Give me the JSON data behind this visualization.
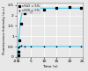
{
  "title": "",
  "xlabel": "Time (s)",
  "ylabel": "Fluorescence Intensity (a.u.)",
  "xlim": [
    -0.5,
    25
  ],
  "ylim": [
    0,
    2.6
  ],
  "xticks": [
    -0.5,
    0,
    5,
    10,
    15,
    20,
    25
  ],
  "xtick_labels": [
    "-0.5",
    "0",
    "5",
    "10",
    "15",
    "20",
    "25"
  ],
  "yticks": [
    0,
    0.5,
    1.0,
    1.5,
    2.0,
    2.5
  ],
  "ytick_labels": [
    "0",
    "0.5",
    "1",
    "1.5",
    "2",
    "2.5"
  ],
  "background_color": "#e8e8e8",
  "grid_color": "#ffffff",
  "line_color": "#55ccee",
  "legend_labels": [
    "c(S2) = 5%",
    "c(S3) = 5%"
  ],
  "dots1_x": [
    0.15,
    0.3,
    0.6,
    1.2,
    2.5,
    5.0,
    10.0,
    15.0,
    20.0,
    24.5
  ],
  "dots1_y": [
    0.08,
    0.25,
    0.8,
    1.6,
    2.1,
    2.2,
    2.3,
    2.35,
    2.4,
    2.38
  ],
  "dots2_x": [
    0.15,
    0.3,
    0.6,
    1.2,
    2.5,
    5.0,
    10.0,
    15.0,
    20.0,
    24.5
  ],
  "dots2_y": [
    0.45,
    0.48,
    0.52,
    0.55,
    0.52,
    0.5,
    0.5,
    0.52,
    0.5,
    0.51
  ],
  "sim1_baseline": 0.0,
  "sim1_plateau": 2.35,
  "sim1_tau": 0.7,
  "sim2_baseline": 0.0,
  "sim2_plateau": 0.5,
  "sim2_tau": 0.1
}
